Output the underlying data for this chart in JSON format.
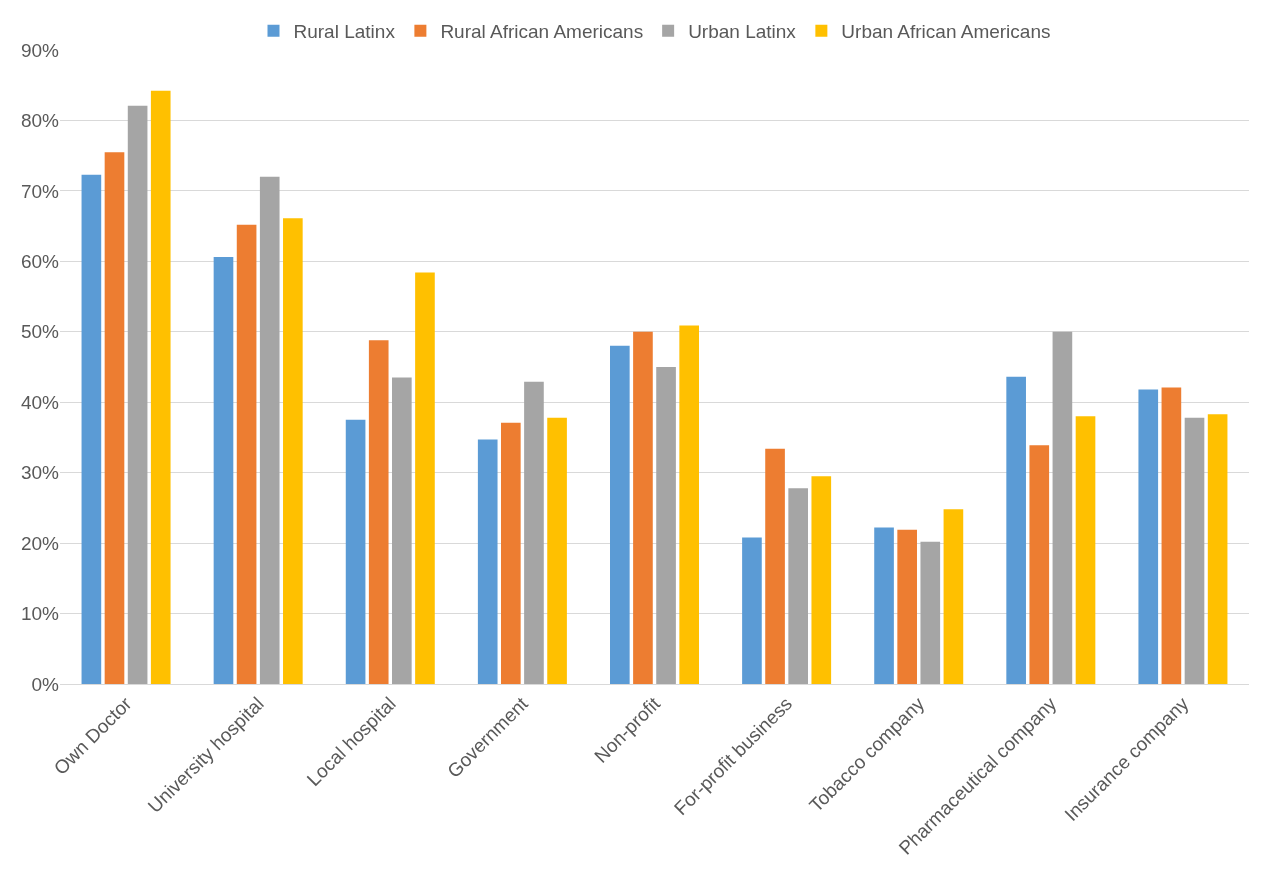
{
  "chart_data": {
    "type": "bar",
    "categories": [
      "Own Doctor",
      "University hospital",
      "Local hospital",
      "Government",
      "Non-profit",
      "For-profit business",
      "Tobacco company",
      "Pharmaceutical company",
      "Insurance company"
    ],
    "series": [
      {
        "name": "Rural Latinx",
        "color": "#5b9bd5",
        "values": [
          72.3,
          60.6,
          37.5,
          34.7,
          48.0,
          20.8,
          22.2,
          43.6,
          41.8
        ]
      },
      {
        "name": "Rural African Americans",
        "color": "#ed7d31",
        "values": [
          75.5,
          65.2,
          48.8,
          37.1,
          50.0,
          33.4,
          21.9,
          33.9,
          42.1
        ]
      },
      {
        "name": "Urban Latinx",
        "color": "#a5a5a5",
        "values": [
          82.1,
          72.0,
          43.5,
          42.9,
          45.0,
          27.8,
          20.2,
          50.0,
          37.8
        ]
      },
      {
        "name": "Urban African Americans",
        "color": "#ffc000",
        "values": [
          84.2,
          66.1,
          58.4,
          37.8,
          50.9,
          29.5,
          24.8,
          38.0,
          38.3
        ]
      }
    ],
    "ylim": [
      0,
      90
    ],
    "yticks": [
      {
        "value": 0,
        "label": "0%"
      },
      {
        "value": 10,
        "label": "10%"
      },
      {
        "value": 20,
        "label": "20%"
      },
      {
        "value": 30,
        "label": "30%"
      },
      {
        "value": 40,
        "label": "40%"
      },
      {
        "value": 50,
        "label": "50%"
      },
      {
        "value": 60,
        "label": "60%"
      },
      {
        "value": 70,
        "label": "70%"
      },
      {
        "value": 80,
        "label": "80%"
      },
      {
        "value": 90,
        "label": "90%"
      }
    ],
    "grid": "y",
    "legend": "top"
  }
}
